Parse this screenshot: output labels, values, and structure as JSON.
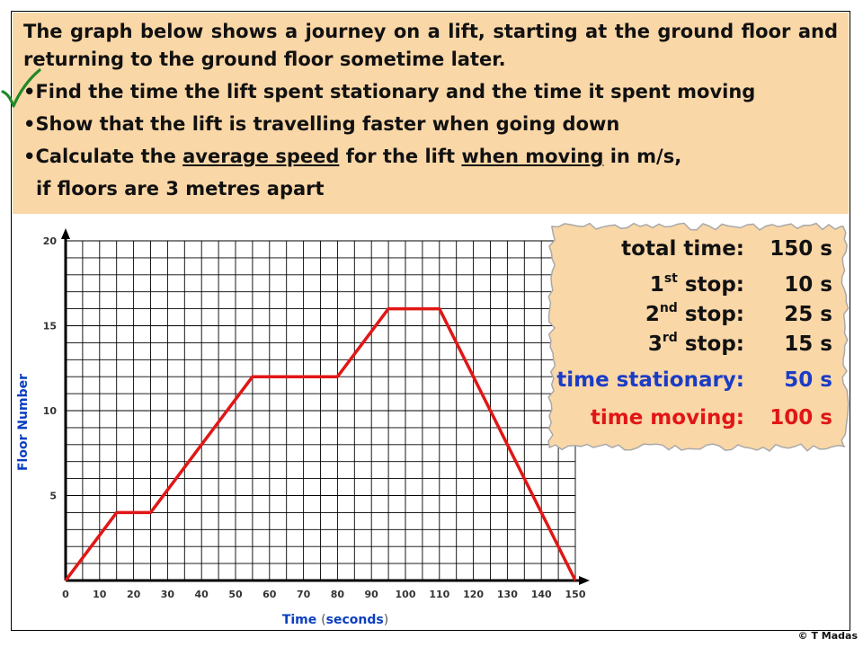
{
  "question": {
    "intro": "The graph below shows a journey on a lift, starting at the ground floor and returning to the ground floor sometime later.",
    "bullet1": "Find the time the lift spent stationary and the time it spent moving",
    "bullet2": "Show that the lift is travelling faster when going down",
    "bullet3_pre": "Calculate the ",
    "bullet3_u1": "average speed",
    "bullet3_mid": " for the lift ",
    "bullet3_u2": "when moving",
    "bullet3_post": " in m/s,",
    "bullet3_cont": "if floors are 3 metres apart"
  },
  "results": {
    "total_label": "total time:",
    "total_value": "150 s",
    "stop1_num": "1",
    "stop1_sup": "st",
    "stop1_rest": " stop:",
    "stop1_value": "10 s",
    "stop2_num": "2",
    "stop2_sup": "nd",
    "stop2_rest": " stop:",
    "stop2_value": "25 s",
    "stop3_num": "3",
    "stop3_sup": "rd",
    "stop3_rest": " stop:",
    "stop3_value": "15 s",
    "stationary_label": "time stationary:",
    "stationary_value": "50 s",
    "moving_label": "time moving:",
    "moving_value": "100 s"
  },
  "copyright": "© T Madas",
  "colors": {
    "question_bg": "#fad7a7",
    "line": "#e11616",
    "axis_title": "#0b3fbf",
    "stationary": "#1a3cc6",
    "moving": "#e11616"
  },
  "chart_data": {
    "type": "line",
    "xlabel_pre": "Time ",
    "xlabel_paren_open": "(",
    "xlabel_unit": "seconds",
    "xlabel_paren_close": ")",
    "ylabel": "Floor Number",
    "xlim": [
      0,
      150
    ],
    "ylim": [
      0,
      20
    ],
    "x_ticks": [
      0,
      10,
      20,
      30,
      40,
      50,
      60,
      70,
      80,
      90,
      100,
      110,
      120,
      130,
      140,
      150
    ],
    "y_ticks": [
      5,
      10,
      15,
      20
    ],
    "grid": true,
    "series": [
      {
        "x": [
          0,
          15,
          25,
          55,
          80,
          95,
          110,
          150
        ],
        "y": [
          0,
          4,
          4,
          12,
          12,
          16,
          16,
          0
        ]
      }
    ]
  }
}
